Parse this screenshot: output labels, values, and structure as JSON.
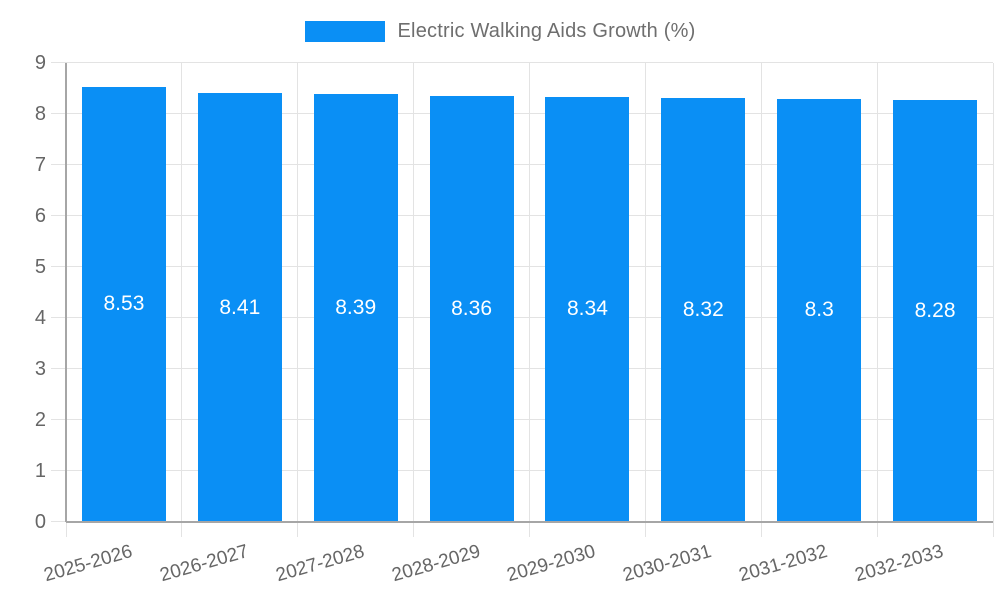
{
  "chart_data": {
    "type": "bar",
    "legend": "Electric Walking Aids Growth (%)",
    "categories": [
      "2025-2026",
      "2026-2027",
      "2027-2028",
      "2028-2029",
      "2029-2030",
      "2030-2031",
      "2031-2032",
      "2032-2033"
    ],
    "values": [
      8.53,
      8.41,
      8.39,
      8.36,
      8.34,
      8.32,
      8.3,
      8.28
    ],
    "bar_labels": [
      "8.53",
      "8.41",
      "8.39",
      "8.36",
      "8.34",
      "8.32",
      "8.3",
      "8.28"
    ],
    "ylim": [
      0,
      9
    ],
    "y_ticks": [
      0,
      1,
      2,
      3,
      4,
      5,
      6,
      7,
      8,
      9
    ],
    "grid": true,
    "legend_position": "top-center",
    "bar_label_position": "inside-middle",
    "colors": {
      "bar": "#0a8ff5",
      "bar_label": "#ffffff",
      "axis_text": "#666666",
      "legend_text": "#6e6e6e",
      "grid_line": "#e3e3e3",
      "axis_line": "#a6a6a6",
      "background": "#ffffff"
    }
  }
}
